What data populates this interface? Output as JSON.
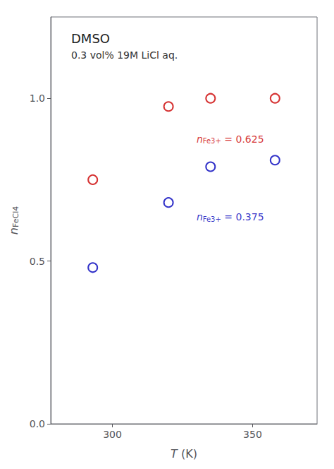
{
  "chart_data": {
    "type": "scatter",
    "title": "DMSO",
    "subtitle": "0.3 vol% 19M LiCl aq.",
    "x_label": "T (K)",
    "y_label": "nFeCl4",
    "xlim": [
      278,
      373
    ],
    "ylim": [
      0,
      1.25
    ],
    "xticks": [
      300,
      350
    ],
    "yticks": [
      {
        "value": 0,
        "label": "0.0"
      },
      0.5,
      {
        "value": 1.0,
        "label": "1.0"
      }
    ],
    "grid": false,
    "marker": "open_circle",
    "series": [
      {
        "color": "#cc0000",
        "x": [
          293,
          320,
          335,
          358
        ],
        "values": [
          0.75,
          0.975,
          1.0,
          1.0
        ]
      },
      {
        "color": "#0000bb",
        "x": [
          293,
          320,
          335,
          358
        ],
        "values": [
          0.48,
          0.68,
          0.79,
          0.81
        ]
      }
    ],
    "annotations": [
      {
        "text": "nFe3+ = 0.625",
        "x": 330,
        "y": 0.875,
        "color": "#cc0000"
      },
      {
        "text": "nFe3+ = 0.375",
        "x": 330,
        "y": 0.635,
        "color": "#0000bb"
      }
    ]
  }
}
